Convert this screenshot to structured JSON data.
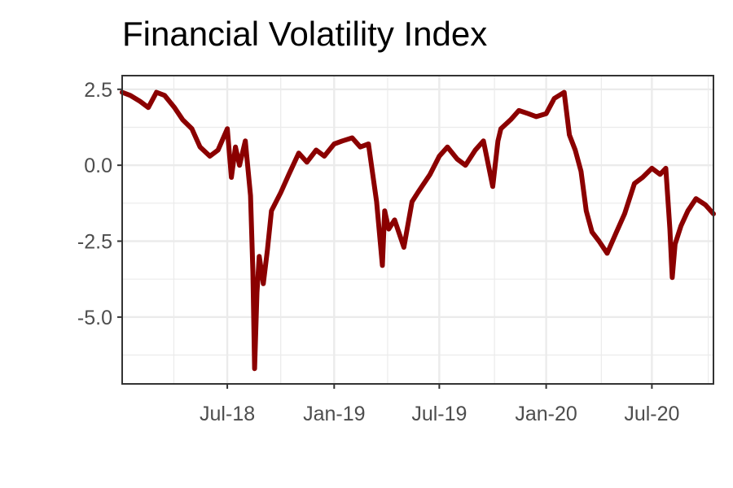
{
  "chart_data": {
    "type": "line",
    "title": "Financial Volatility Index",
    "xlabel": "",
    "ylabel": "",
    "x_ticks": [
      "Jul-18",
      "Jan-19",
      "Jul-19",
      "Jan-20",
      "Jul-20"
    ],
    "x_tick_dates": [
      "2018-07-01",
      "2019-01-01",
      "2019-07-01",
      "2020-01-01",
      "2020-07-01"
    ],
    "y_ticks": [
      "2.5",
      "0.0",
      "-2.5",
      "-5.0"
    ],
    "y_tick_values": [
      2.5,
      0.0,
      -2.5,
      -5.0
    ],
    "xlim": [
      "2018-01-01",
      "2020-10-15"
    ],
    "ylim": [
      -7.2,
      2.95
    ],
    "grid": true,
    "line_color": "#8B0000",
    "series": [
      {
        "x": [
          "2018-01-01",
          "2018-01-15",
          "2018-02-01",
          "2018-02-15",
          "2018-03-01",
          "2018-03-15",
          "2018-04-01",
          "2018-04-15",
          "2018-05-01",
          "2018-05-15",
          "2018-06-01",
          "2018-06-15",
          "2018-07-01",
          "2018-07-08",
          "2018-07-15",
          "2018-07-22",
          "2018-08-01",
          "2018-08-10",
          "2018-08-14",
          "2018-08-17",
          "2018-08-21",
          "2018-08-25",
          "2018-09-01",
          "2018-09-08",
          "2018-09-15",
          "2018-10-01",
          "2018-10-15",
          "2018-11-01",
          "2018-11-15",
          "2018-12-01",
          "2018-12-15",
          "2019-01-01",
          "2019-01-15",
          "2019-02-01",
          "2019-02-15",
          "2019-03-01",
          "2019-03-15",
          "2019-03-25",
          "2019-03-29",
          "2019-04-05",
          "2019-04-15",
          "2019-05-01",
          "2019-05-15",
          "2019-05-25",
          "2019-06-01",
          "2019-06-15",
          "2019-07-01",
          "2019-07-15",
          "2019-08-01",
          "2019-08-15",
          "2019-09-01",
          "2019-09-15",
          "2019-10-01",
          "2019-10-10",
          "2019-10-15",
          "2019-11-01",
          "2019-11-15",
          "2019-12-01",
          "2019-12-15",
          "2020-01-01",
          "2020-01-15",
          "2020-02-01",
          "2020-02-10",
          "2020-02-20",
          "2020-03-01",
          "2020-03-10",
          "2020-03-20",
          "2020-04-01",
          "2020-04-15",
          "2020-05-01",
          "2020-05-15",
          "2020-06-01",
          "2020-06-15",
          "2020-07-01",
          "2020-07-15",
          "2020-07-25",
          "2020-08-01",
          "2020-08-05",
          "2020-08-10",
          "2020-08-20",
          "2020-09-01",
          "2020-09-15",
          "2020-10-01",
          "2020-10-15"
        ],
        "y": [
          2.4,
          2.3,
          2.1,
          1.9,
          2.4,
          2.3,
          1.9,
          1.5,
          1.2,
          0.6,
          0.3,
          0.5,
          1.2,
          -0.4,
          0.6,
          0.0,
          0.8,
          -1.0,
          -3.5,
          -6.7,
          -4.2,
          -3.0,
          -3.9,
          -2.8,
          -1.5,
          -0.9,
          -0.3,
          0.4,
          0.1,
          0.5,
          0.3,
          0.7,
          0.8,
          0.9,
          0.6,
          0.7,
          -1.2,
          -3.3,
          -1.5,
          -2.1,
          -1.8,
          -2.7,
          -1.2,
          -0.9,
          -0.7,
          -0.3,
          0.3,
          0.6,
          0.2,
          0.0,
          0.5,
          0.8,
          -0.7,
          0.8,
          1.2,
          1.5,
          1.8,
          1.7,
          1.6,
          1.7,
          2.2,
          2.4,
          1.0,
          0.5,
          -0.2,
          -1.5,
          -2.2,
          -2.5,
          -2.9,
          -2.2,
          -1.6,
          -0.6,
          -0.4,
          -0.1,
          -0.3,
          -0.1,
          -2.1,
          -3.7,
          -2.6,
          -2.0,
          -1.5,
          -1.1,
          -1.3,
          -1.6
        ]
      }
    ]
  }
}
